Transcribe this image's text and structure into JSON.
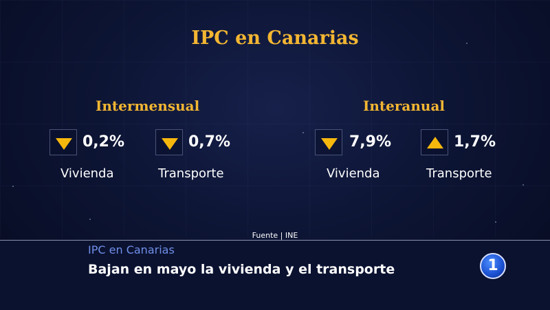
{
  "title": "IPC en Canarias",
  "sections": [
    {
      "heading": "Intermensual",
      "items": [
        {
          "direction": "down",
          "value": "0,2%",
          "label": "Vivienda"
        },
        {
          "direction": "down",
          "value": "0,7%",
          "label": "Transporte"
        }
      ]
    },
    {
      "heading": "Interanual",
      "items": [
        {
          "direction": "down",
          "value": "7,9%",
          "label": "Vivienda"
        },
        {
          "direction": "up",
          "value": "1,7%",
          "label": "Transporte"
        }
      ]
    }
  ],
  "source": "Fuente | INE",
  "lower_third": {
    "subtitle": "IPC en Canarias",
    "headline": "Bajan en mayo la vivienda y el transporte"
  },
  "logo": {
    "text": "1",
    "icon": "la1-logo-icon"
  },
  "colors": {
    "accent": "#f3b632",
    "arrow": "#f7b80e",
    "subtitle": "#6f8fe8"
  }
}
